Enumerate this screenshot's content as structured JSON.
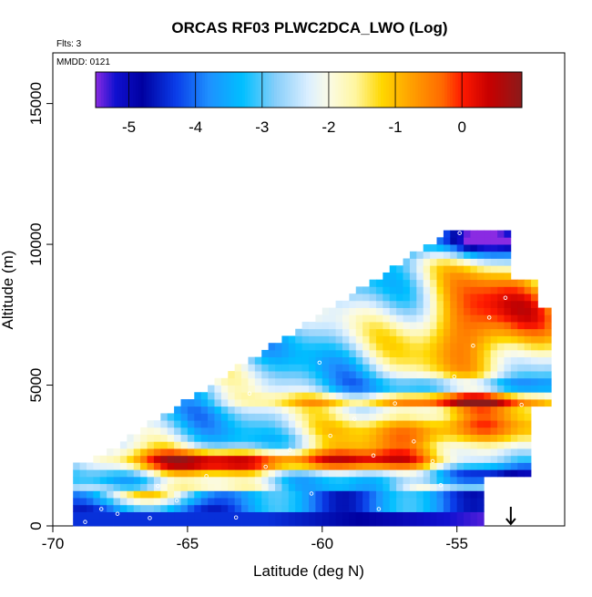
{
  "chart_data": {
    "type": "heatmap",
    "title": "ORCAS RF03 PLWC2DCA_LWO (Log)",
    "top_left_text": "Flts: 3",
    "inset_text": "MMDD: 0121",
    "xlabel": "Latitude (deg N)",
    "ylabel": "Altitude (m)",
    "xlim": [
      -70,
      -51
    ],
    "ylim": [
      0,
      16800
    ],
    "x_ticks": [
      -70,
      -65,
      -60,
      -55
    ],
    "y_ticks": [
      0,
      5000,
      10000,
      15000
    ],
    "colorbar": {
      "range": [
        -5.5,
        0.9
      ],
      "ticks": [
        -5,
        -4,
        -3,
        -2,
        -1,
        0
      ],
      "stops": [
        {
          "v": -5.5,
          "color": "#8a2be2"
        },
        {
          "v": -5.2,
          "color": "#1010d0"
        },
        {
          "v": -4.8,
          "color": "#0000a0"
        },
        {
          "v": -4.3,
          "color": "#0a3ce8"
        },
        {
          "v": -3.8,
          "color": "#1e90ff"
        },
        {
          "v": -3.3,
          "color": "#00bfff"
        },
        {
          "v": -2.8,
          "color": "#87cefa"
        },
        {
          "v": -2.3,
          "color": "#dcefff"
        },
        {
          "v": -2.0,
          "color": "#fbfbe6"
        },
        {
          "v": -1.6,
          "color": "#fff6a0"
        },
        {
          "v": -1.2,
          "color": "#ffd700"
        },
        {
          "v": -0.8,
          "color": "#ffa500"
        },
        {
          "v": -0.3,
          "color": "#ff6a00"
        },
        {
          "v": 0.0,
          "color": "#ff1a00"
        },
        {
          "v": 0.4,
          "color": "#c80000"
        },
        {
          "v": 0.9,
          "color": "#8b1a1a"
        }
      ]
    },
    "arrow_marker_latitude": -53.0,
    "grid_cell": {
      "dlat": 0.25,
      "dalt": 250
    }
  }
}
